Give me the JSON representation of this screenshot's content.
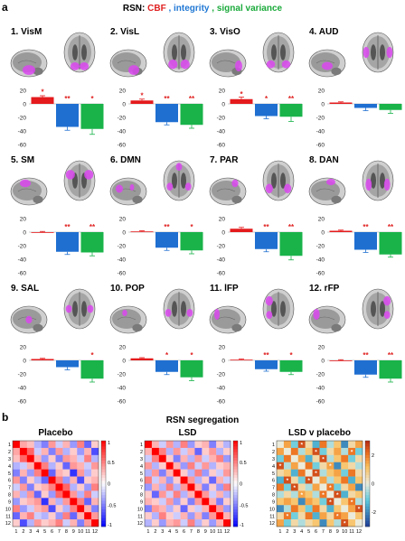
{
  "figure": {
    "panel_a_label": "a",
    "panel_b_label": "b",
    "legend": {
      "prefix": "RSN: ",
      "items": [
        {
          "label": "CBF",
          "color": "#e02020"
        },
        {
          "label": "integrity",
          "color": "#1f77d4"
        },
        {
          "label": "signal variance",
          "color": "#1aaa3a"
        }
      ]
    },
    "colors": {
      "cbf": "#e41a1c",
      "integrity": "#1f6fd1",
      "signal_variance": "#19b34a",
      "brain_gray": "#8c8c8c",
      "activation": "#d946ef",
      "significance": "#e02020"
    }
  },
  "chart_data": [
    {
      "type": "bar",
      "title": "1. VisM",
      "categories": [
        "CBF",
        "integrity",
        "signal variance"
      ],
      "values": [
        10,
        -34,
        -37
      ],
      "errors": [
        2,
        5,
        8
      ],
      "significance": [
        "*",
        "**",
        "*"
      ],
      "ylim": [
        -60,
        20
      ],
      "yticks": [
        "20",
        "0",
        "-20",
        "-40",
        "-60"
      ]
    },
    {
      "type": "bar",
      "title": "2. VisL",
      "categories": [
        "CBF",
        "integrity",
        "signal variance"
      ],
      "values": [
        5,
        -27,
        -31
      ],
      "errors": [
        2,
        4,
        5
      ],
      "significance": [
        "*",
        "**",
        "**"
      ],
      "ylim": [
        -60,
        20
      ],
      "yticks": [
        "20",
        "0",
        "-20",
        "-40",
        "-60"
      ]
    },
    {
      "type": "bar",
      "title": "3. VisO",
      "categories": [
        "CBF",
        "integrity",
        "signal variance"
      ],
      "values": [
        7,
        -18,
        -19
      ],
      "errors": [
        3,
        4,
        7
      ],
      "significance": [
        "*",
        "*",
        "**"
      ],
      "ylim": [
        -60,
        20
      ],
      "yticks": [
        "20",
        "0",
        "-20",
        "-40",
        "-60"
      ]
    },
    {
      "type": "bar",
      "title": "4. AUD",
      "categories": [
        "CBF",
        "integrity",
        "signal variance"
      ],
      "values": [
        2,
        -6,
        -9
      ],
      "errors": [
        1,
        4,
        5
      ],
      "significance": [
        "",
        "",
        ""
      ],
      "ylim": [
        -60,
        20
      ],
      "yticks": [
        "20",
        "0",
        "-20",
        "-40",
        "-60"
      ]
    },
    {
      "type": "bar",
      "title": "5. SM",
      "categories": [
        "CBF",
        "integrity",
        "signal variance"
      ],
      "values": [
        0,
        -29,
        -30
      ],
      "errors": [
        1,
        4,
        5
      ],
      "significance": [
        "",
        "**",
        "**"
      ],
      "ylim": [
        -60,
        20
      ],
      "yticks": [
        "20",
        "0",
        "-20",
        "-40",
        "-60"
      ]
    },
    {
      "type": "bar",
      "title": "6. DMN",
      "categories": [
        "CBF",
        "integrity",
        "signal variance"
      ],
      "values": [
        1,
        -23,
        -27
      ],
      "errors": [
        1,
        4,
        5
      ],
      "significance": [
        "",
        "**",
        "*"
      ],
      "ylim": [
        -60,
        20
      ],
      "yticks": [
        "20",
        "0",
        "-20",
        "-40",
        "-60"
      ]
    },
    {
      "type": "bar",
      "title": "7. PAR",
      "categories": [
        "CBF",
        "integrity",
        "signal variance"
      ],
      "values": [
        5,
        -25,
        -35
      ],
      "errors": [
        2,
        4,
        6
      ],
      "significance": [
        "",
        "**",
        "**"
      ],
      "ylim": [
        -60,
        20
      ],
      "yticks": [
        "20",
        "0",
        "-20",
        "-40",
        "-60"
      ]
    },
    {
      "type": "bar",
      "title": "8. DAN",
      "categories": [
        "CBF",
        "integrity",
        "signal variance"
      ],
      "values": [
        2,
        -26,
        -33
      ],
      "errors": [
        1,
        4,
        4
      ],
      "significance": [
        "",
        "**",
        "**"
      ],
      "ylim": [
        -60,
        20
      ],
      "yticks": [
        "20",
        "0",
        "-20",
        "-40",
        "-60"
      ]
    },
    {
      "type": "bar",
      "title": "9. SAL",
      "categories": [
        "CBF",
        "integrity",
        "signal variance"
      ],
      "values": [
        2,
        -10,
        -27
      ],
      "errors": [
        1,
        4,
        5
      ],
      "significance": [
        "",
        "",
        "*"
      ],
      "ylim": [
        -60,
        20
      ],
      "yticks": [
        "20",
        "0",
        "-20",
        "-40",
        "-60"
      ]
    },
    {
      "type": "bar",
      "title": "10. POP",
      "categories": [
        "CBF",
        "integrity",
        "signal variance"
      ],
      "values": [
        3,
        -17,
        -25
      ],
      "errors": [
        1,
        4,
        5
      ],
      "significance": [
        "",
        "*",
        "*"
      ],
      "ylim": [
        -60,
        20
      ],
      "yticks": [
        "20",
        "0",
        "-20",
        "-40",
        "-60"
      ]
    },
    {
      "type": "bar",
      "title": "11. lFP",
      "categories": [
        "CBF",
        "integrity",
        "signal variance"
      ],
      "values": [
        1,
        -13,
        -17
      ],
      "errors": [
        1,
        3,
        4
      ],
      "significance": [
        "",
        "**",
        "*"
      ],
      "ylim": [
        -60,
        20
      ],
      "yticks": [
        "20",
        "0",
        "-20",
        "-40",
        "-60"
      ]
    },
    {
      "type": "bar",
      "title": "12. rFP",
      "categories": [
        "CBF",
        "integrity",
        "signal variance"
      ],
      "values": [
        0,
        -21,
        -27
      ],
      "errors": [
        1,
        4,
        5
      ],
      "significance": [
        "",
        "**",
        "**"
      ],
      "ylim": [
        -60,
        20
      ],
      "yticks": [
        "20",
        "0",
        "-20",
        "-40",
        "-60"
      ]
    },
    {
      "type": "heatmap",
      "title": "Placebo",
      "x": [
        "1",
        "2",
        "3",
        "4",
        "5",
        "6",
        "7",
        "8",
        "9",
        "10",
        "11",
        "12"
      ],
      "y": [
        "1",
        "2",
        "3",
        "4",
        "5",
        "6",
        "7",
        "8",
        "9",
        "10",
        "11",
        "12"
      ],
      "values": [
        [
          1,
          0.35,
          0.25,
          -0.3,
          -0.5,
          0.4,
          -0.2,
          0.3,
          -0.4,
          0.5,
          -0.6,
          0.2
        ],
        [
          0.35,
          1,
          0.6,
          -0.2,
          0.3,
          -0.5,
          0.4,
          -0.3,
          0.2,
          -0.4,
          0.3,
          -0.7
        ],
        [
          0.25,
          0.6,
          1,
          0.3,
          -0.4,
          0.2,
          -0.5,
          0.4,
          0.3,
          -0.2,
          0.5,
          -0.3
        ],
        [
          -0.3,
          -0.2,
          0.3,
          1,
          0.5,
          -0.3,
          0.2,
          -0.6,
          0.4,
          0.3,
          -0.2,
          0.4
        ],
        [
          -0.5,
          0.3,
          -0.4,
          0.5,
          1,
          -0.6,
          0.3,
          0.2,
          -0.8,
          0.4,
          -0.3,
          0.2
        ],
        [
          0.4,
          -0.5,
          0.2,
          -0.3,
          -0.6,
          1,
          0.5,
          -0.4,
          0.3,
          -0.7,
          0.2,
          0.3
        ],
        [
          -0.2,
          0.4,
          -0.5,
          0.2,
          0.3,
          0.5,
          1,
          0.6,
          -0.3,
          0.2,
          -0.4,
          0.5
        ],
        [
          0.3,
          -0.3,
          0.4,
          -0.6,
          0.2,
          -0.4,
          0.6,
          1,
          0.4,
          -0.3,
          0.5,
          -0.2
        ],
        [
          -0.4,
          0.2,
          0.3,
          0.4,
          -0.8,
          0.3,
          -0.3,
          0.4,
          1,
          0.5,
          -0.6,
          0.3
        ],
        [
          0.5,
          -0.4,
          -0.2,
          0.3,
          0.4,
          -0.7,
          0.2,
          -0.3,
          0.5,
          1,
          0.3,
          -0.5
        ],
        [
          -0.6,
          0.3,
          0.5,
          -0.2,
          -0.3,
          0.2,
          -0.4,
          0.5,
          -0.6,
          0.3,
          1,
          0.4
        ],
        [
          0.2,
          -0.7,
          -0.3,
          0.4,
          0.2,
          0.3,
          0.5,
          -0.2,
          0.3,
          -0.5,
          0.4,
          1
        ]
      ],
      "colorbar": {
        "range": [
          -1,
          1
        ],
        "ticks": [
          "1",
          "0.5",
          "0",
          "-0.5",
          "-1"
        ]
      }
    },
    {
      "type": "heatmap",
      "title": "LSD",
      "x": [
        "1",
        "2",
        "3",
        "4",
        "5",
        "6",
        "7",
        "8",
        "9",
        "10",
        "11",
        "12"
      ],
      "y": [
        "1",
        "2",
        "3",
        "4",
        "5",
        "6",
        "7",
        "8",
        "9",
        "10",
        "11",
        "12"
      ],
      "values": [
        [
          1,
          0.3,
          -0.2,
          0.4,
          -0.3,
          0.5,
          -0.4,
          0.2,
          0.3,
          -0.5,
          0.2,
          -0.3
        ],
        [
          0.3,
          1,
          0.5,
          -0.3,
          0.4,
          -0.2,
          0.3,
          -0.6,
          0.2,
          0.4,
          -0.3,
          0.2
        ],
        [
          -0.2,
          0.5,
          1,
          0.2,
          -0.5,
          0.3,
          -0.3,
          0.4,
          -0.2,
          0.3,
          0.5,
          -0.4
        ],
        [
          0.4,
          -0.3,
          0.2,
          1,
          0.3,
          -0.4,
          0.5,
          -0.2,
          0.4,
          -0.3,
          0.2,
          0.3
        ],
        [
          -0.3,
          0.4,
          -0.5,
          0.3,
          1,
          0.2,
          -0.3,
          0.5,
          -0.4,
          0.2,
          -0.2,
          0.4
        ],
        [
          0.5,
          -0.2,
          0.3,
          -0.4,
          0.2,
          1,
          0.4,
          -0.3,
          0.2,
          -0.6,
          0.3,
          -0.2
        ],
        [
          -0.4,
          0.3,
          -0.3,
          0.5,
          -0.3,
          0.4,
          1,
          0.3,
          -0.5,
          0.2,
          -0.4,
          0.5
        ],
        [
          0.2,
          -0.6,
          0.4,
          -0.2,
          0.5,
          -0.3,
          0.3,
          1,
          0.4,
          -0.2,
          0.3,
          -0.3
        ],
        [
          0.3,
          0.2,
          -0.2,
          0.4,
          -0.4,
          0.2,
          -0.5,
          0.4,
          1,
          0.3,
          -0.5,
          0.2
        ],
        [
          -0.5,
          0.4,
          0.3,
          -0.3,
          0.2,
          -0.6,
          0.2,
          -0.2,
          0.3,
          1,
          0.4,
          -0.4
        ],
        [
          0.2,
          -0.3,
          0.5,
          0.2,
          -0.2,
          0.3,
          -0.4,
          0.3,
          -0.5,
          0.4,
          1,
          0.3
        ],
        [
          -0.3,
          0.2,
          -0.4,
          0.3,
          0.4,
          -0.2,
          0.5,
          -0.3,
          0.2,
          -0.4,
          0.3,
          1
        ]
      ],
      "colorbar": {
        "range": [
          -1,
          1
        ],
        "ticks": [
          "1",
          "0.5",
          "0",
          "-0.5",
          "-1"
        ]
      }
    },
    {
      "type": "heatmap",
      "title": "LSD v placebo",
      "x": [
        "1",
        "2",
        "3",
        "4",
        "5",
        "6",
        "7",
        "8",
        "9",
        "10",
        "11",
        "12"
      ],
      "y": [
        "1",
        "2",
        "3",
        "4",
        "5",
        "6",
        "7",
        "8",
        "9",
        "10",
        "11",
        "12"
      ],
      "values": [
        [
          0,
          1.5,
          -1.0,
          2.5,
          0.5,
          -1.5,
          2.0,
          -0.5,
          1.0,
          -2.0,
          0.5,
          1.5
        ],
        [
          1.5,
          0,
          2.0,
          -0.5,
          1.0,
          2.5,
          -1.0,
          0.5,
          1.5,
          -0.5,
          2.0,
          -1.0
        ],
        [
          -1.0,
          2.0,
          0,
          1.5,
          -1.5,
          0.5,
          2.5,
          -0.5,
          1.0,
          2.0,
          -1.0,
          0.5
        ],
        [
          2.5,
          -0.5,
          1.5,
          0,
          2.0,
          -1.0,
          0.5,
          1.5,
          -2.0,
          1.0,
          0.5,
          -0.5
        ],
        [
          0.5,
          1.0,
          -1.5,
          2.0,
          0,
          2.5,
          -0.5,
          1.0,
          1.5,
          -1.0,
          2.0,
          0.5
        ],
        [
          -1.5,
          2.5,
          0.5,
          -1.0,
          2.5,
          0,
          1.5,
          -0.5,
          1.0,
          2.0,
          -1.5,
          1.0
        ],
        [
          2.0,
          -1.0,
          2.5,
          0.5,
          -0.5,
          1.5,
          0,
          2.0,
          -1.0,
          0.5,
          1.5,
          -2.0
        ],
        [
          -0.5,
          0.5,
          -0.5,
          1.5,
          1.0,
          -0.5,
          2.0,
          0,
          2.5,
          -1.5,
          0.5,
          1.0
        ],
        [
          1.0,
          1.5,
          1.0,
          -2.0,
          1.5,
          1.0,
          -1.0,
          2.5,
          0,
          1.0,
          2.0,
          -0.5
        ],
        [
          -2.0,
          -0.5,
          2.0,
          1.0,
          -1.0,
          2.0,
          0.5,
          -1.5,
          1.0,
          0,
          1.5,
          2.5
        ],
        [
          0.5,
          2.0,
          -1.0,
          0.5,
          2.0,
          -1.5,
          1.5,
          0.5,
          2.0,
          1.5,
          0,
          1.0
        ],
        [
          1.5,
          -1.0,
          0.5,
          -0.5,
          0.5,
          1.0,
          -2.0,
          1.0,
          -0.5,
          2.5,
          1.0,
          0
        ]
      ],
      "significant_cells": [
        [
          1,
          4
        ],
        [
          4,
          1
        ],
        [
          2,
          6
        ],
        [
          6,
          2
        ],
        [
          3,
          7
        ],
        [
          7,
          3
        ],
        [
          5,
          6
        ],
        [
          6,
          5
        ],
        [
          8,
          9
        ],
        [
          9,
          8
        ],
        [
          10,
          12
        ],
        [
          12,
          10
        ],
        [
          2,
          11
        ],
        [
          11,
          2
        ],
        [
          4,
          8
        ],
        [
          8,
          4
        ],
        [
          7,
          8
        ],
        [
          8,
          7
        ],
        [
          9,
          11
        ],
        [
          11,
          9
        ]
      ],
      "colorbar": {
        "range": [
          -3,
          3
        ],
        "ticks": [
          "2",
          "0",
          "-2"
        ]
      }
    }
  ],
  "panel_b_title": "RSN segregation"
}
